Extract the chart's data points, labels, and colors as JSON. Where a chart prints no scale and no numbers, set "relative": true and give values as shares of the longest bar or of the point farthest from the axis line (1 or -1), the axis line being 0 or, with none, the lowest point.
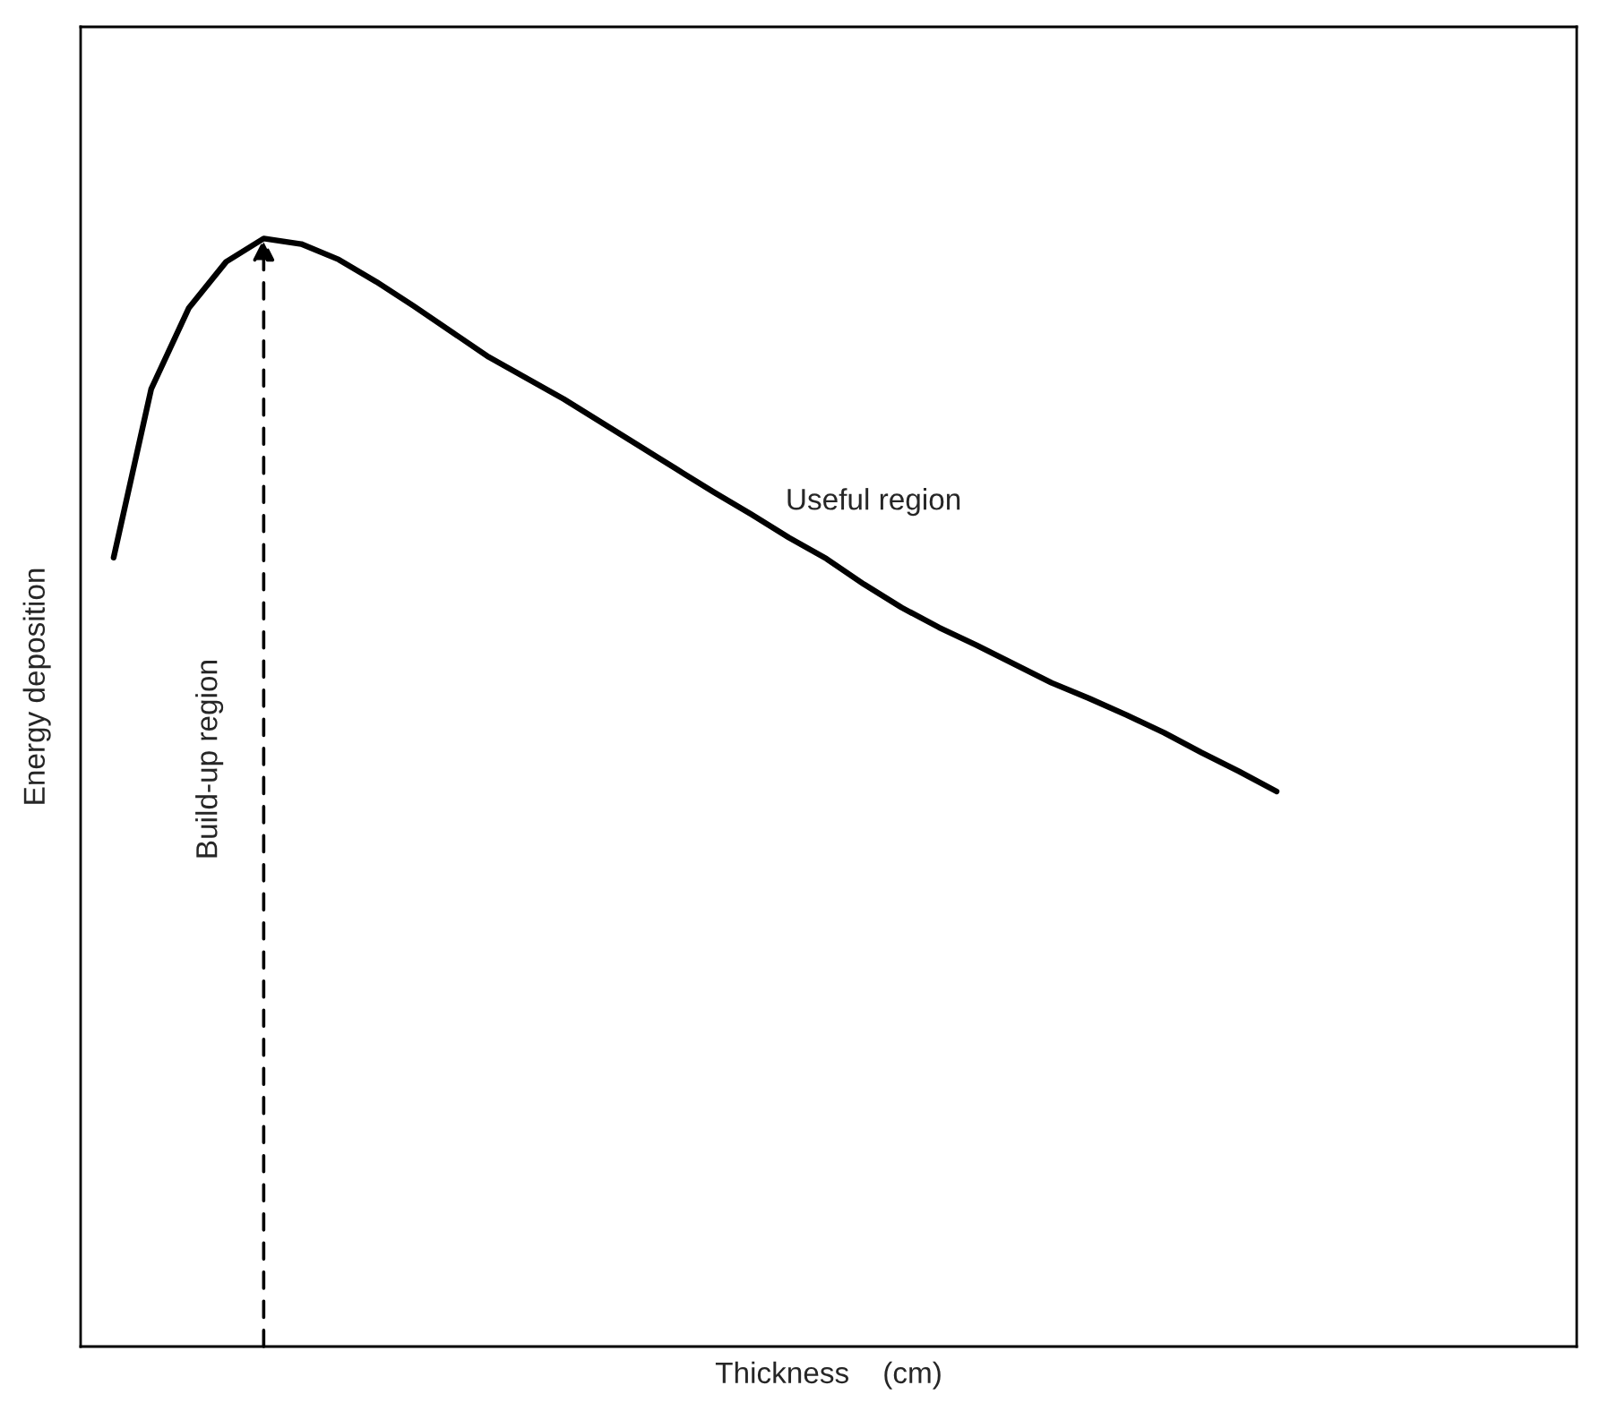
{
  "chart_data": {
    "type": "line",
    "relative": true,
    "xlabel": "Thickness    (cm)",
    "ylabel": "Energy deposition",
    "categories": [
      null,
      null,
      null,
      null,
      null,
      null,
      null,
      null,
      null,
      null,
      null,
      null,
      null,
      null,
      null,
      null,
      null,
      null,
      null,
      null,
      null,
      null,
      null,
      null,
      null,
      null,
      null,
      null,
      null,
      null,
      null,
      null
    ],
    "series": [
      {
        "color": "#000000",
        "values": [
          0.712,
          0.864,
          0.937,
          0.979,
          1,
          0.995,
          0.981,
          0.961,
          0.939,
          0.916,
          0.893,
          0.874,
          0.855,
          0.834,
          0.813,
          0.792,
          0.771,
          0.751,
          0.73,
          0.711,
          0.688,
          0.667,
          0.649,
          0.633,
          0.616,
          0.599,
          0.585,
          0.57,
          0.554,
          0.536,
          0.519,
          0.501
        ]
      }
    ],
    "annotations": [
      "Useful region",
      "Build-up region"
    ],
    "legend": false,
    "marker": "none",
    "line_style": "solid"
  }
}
